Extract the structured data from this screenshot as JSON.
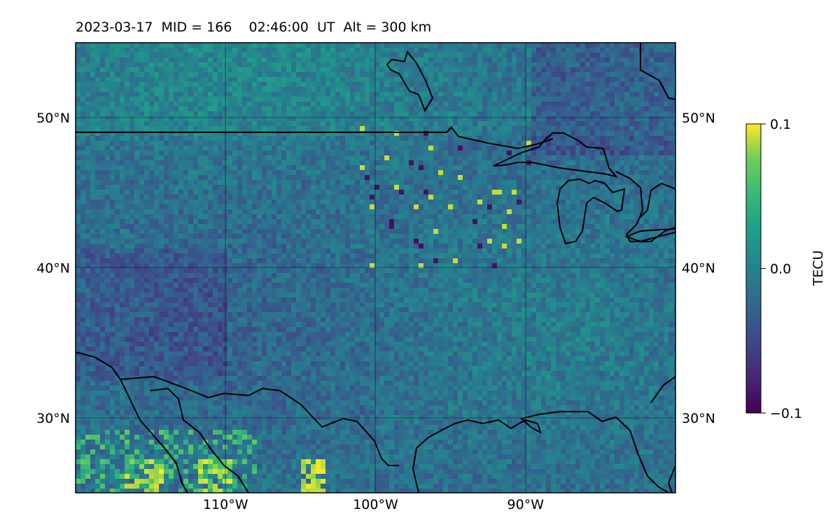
{
  "title": "2023-03-17  MID = 166    02:46:00  UT  Alt = 300 km",
  "map": {
    "lon_range": [
      -120,
      -80
    ],
    "lat_range": [
      25,
      55
    ],
    "lat_ticks": [
      {
        "value": 50,
        "label": "50°N"
      },
      {
        "value": 40,
        "label": "40°N"
      },
      {
        "value": 30,
        "label": "30°N"
      }
    ],
    "lon_ticks": [
      {
        "value": -110,
        "label": "110°W"
      },
      {
        "value": -100,
        "label": "100°W"
      },
      {
        "value": -90,
        "label": "90°W"
      }
    ],
    "gridlines": true,
    "coastlines": true
  },
  "colorbar": {
    "label": "TECU",
    "colormap": "viridis",
    "vmin": -0.1,
    "vmax": 0.1,
    "ticks": [
      {
        "value": 0.1,
        "label": "0.1"
      },
      {
        "value": 0.0,
        "label": "0.0"
      },
      {
        "value": -0.1,
        "label": "−0.1"
      }
    ]
  },
  "colors": {
    "viridis_low": "#440154",
    "viridis_mid": "#21918c",
    "viridis_high": "#fde725"
  }
}
